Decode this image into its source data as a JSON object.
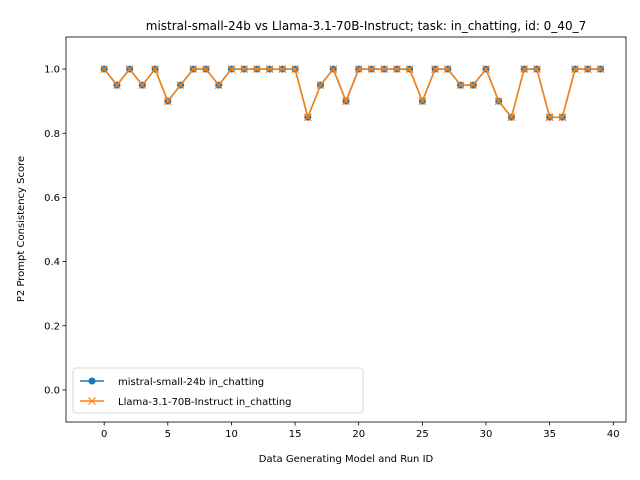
{
  "chart_data": {
    "type": "line",
    "title": "mistral-small-24b vs Llama-3.1-70B-Instruct; task: in_chatting, id: 0_40_7",
    "xlabel": "Data Generating Model and Run ID",
    "ylabel": "P2 Prompt Consistency Score",
    "xlim": [
      -3,
      41
    ],
    "ylim": [
      -0.1,
      1.1
    ],
    "xticks": [
      0,
      5,
      10,
      15,
      20,
      25,
      30,
      35,
      40
    ],
    "yticks": [
      0.0,
      0.2,
      0.4,
      0.6,
      0.8,
      1.0
    ],
    "xtick_labels": [
      "0",
      "5",
      "10",
      "15",
      "20",
      "25",
      "30",
      "35",
      "40"
    ],
    "ytick_labels": [
      "0.0",
      "0.2",
      "0.4",
      "0.6",
      "0.8",
      "1.0"
    ],
    "grid": false,
    "legend_position": "lower-left",
    "x": [
      0,
      1,
      2,
      3,
      4,
      5,
      6,
      7,
      8,
      9,
      10,
      11,
      12,
      13,
      14,
      15,
      16,
      17,
      18,
      19,
      20,
      21,
      22,
      23,
      24,
      25,
      26,
      27,
      28,
      29,
      30,
      31,
      32,
      33,
      34,
      35,
      36,
      37,
      38,
      39
    ],
    "series": [
      {
        "name": "mistral-small-24b in_chatting",
        "color": "#1f77b4",
        "marker": "circle",
        "values": [
          1.0,
          0.95,
          1.0,
          0.95,
          1.0,
          0.9,
          0.95,
          1.0,
          1.0,
          0.95,
          1.0,
          1.0,
          1.0,
          1.0,
          1.0,
          1.0,
          0.85,
          0.95,
          1.0,
          0.9,
          1.0,
          1.0,
          1.0,
          1.0,
          1.0,
          0.9,
          1.0,
          1.0,
          0.95,
          0.95,
          1.0,
          0.9,
          0.85,
          1.0,
          1.0,
          0.85,
          0.85,
          1.0,
          1.0,
          1.0
        ]
      },
      {
        "name": "Llama-3.1-70B-Instruct in_chatting",
        "color": "#ff7f0e",
        "marker": "x",
        "values": [
          1.0,
          0.95,
          1.0,
          0.95,
          1.0,
          0.9,
          0.95,
          1.0,
          1.0,
          0.95,
          1.0,
          1.0,
          1.0,
          1.0,
          1.0,
          1.0,
          0.85,
          0.95,
          1.0,
          0.9,
          1.0,
          1.0,
          1.0,
          1.0,
          1.0,
          0.9,
          1.0,
          1.0,
          0.95,
          0.95,
          1.0,
          0.9,
          0.85,
          1.0,
          1.0,
          0.85,
          0.85,
          1.0,
          1.0,
          1.0
        ]
      }
    ]
  }
}
